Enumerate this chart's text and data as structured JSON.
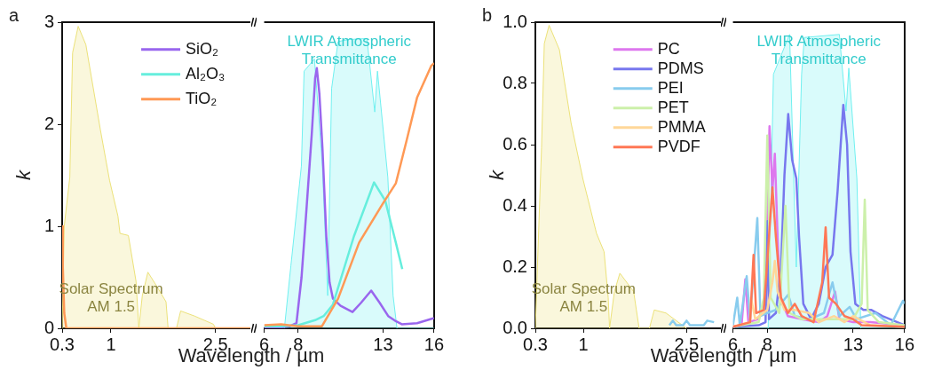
{
  "chart_data": [
    {
      "type": "line",
      "title": "a",
      "ylabel": "k",
      "xlabel": "Wavelength / µm",
      "xlim": [
        0.3,
        3
      ],
      "xticks": [
        0.3,
        1,
        2.5
      ],
      "ylim": [
        0,
        3
      ],
      "yticks": [
        0,
        1,
        2,
        3
      ],
      "legend": "top right",
      "marker": "none",
      "annotations": [
        "Solar Spectrum\nAM 1.5"
      ],
      "series": [
        {
          "type": "area",
          "color": "#ece27a",
          "x": [
            0.3,
            0.33,
            0.41,
            0.45,
            0.53,
            0.64,
            0.85,
            0.98,
            1.1,
            1.13,
            1.25,
            1.36,
            1.4,
            1.45,
            1.53,
            1.65,
            1.79,
            1.82,
            1.94,
            2.0,
            2.2,
            2.47,
            2.5
          ],
          "values": [
            0,
            1.0,
            1.48,
            2.7,
            2.96,
            2.78,
            1.94,
            1.45,
            1.1,
            0.93,
            0.91,
            0.46,
            0,
            0.32,
            0.55,
            0.42,
            0.26,
            0,
            0,
            0.17,
            0.12,
            0.04,
            0
          ]
        },
        {
          "name": "SiO₂",
          "color": "#9966ee"
        },
        {
          "name": "Al₂O₃",
          "color": "#66eedd"
        },
        {
          "name": "TiO₂",
          "color": "#ff9955",
          "x": [
            0.3,
            0.31,
            0.33,
            0.36,
            3
          ],
          "values": [
            1.0,
            0.6,
            0.15,
            0,
            0
          ]
        }
      ]
    },
    {
      "type": "line",
      "xlim": [
        6,
        16
      ],
      "xticks": [
        6,
        8,
        13,
        16
      ],
      "ylim": [
        0,
        3
      ],
      "yticks": [
        0,
        1,
        2,
        3
      ],
      "tick_labels": "x",
      "marker": "none",
      "annotations": [
        "LWIR Atmospheric\nTransmittance"
      ],
      "series": [
        {
          "type": "area",
          "color": "#70f0f0",
          "x": [
            6,
            7.19,
            7.57,
            8.19,
            8.35,
            8.96,
            9.43,
            9.74,
            9.97,
            10.35,
            10.97,
            12.05,
            12.51,
            12.67,
            13.28,
            13.59,
            13.82,
            16
          ],
          "values": [
            0,
            0,
            0.61,
            1.59,
            2.52,
            2.64,
            1.59,
            0.32,
            2.35,
            2.81,
            2.83,
            2.84,
            2.12,
            2.52,
            1.48,
            0.32,
            0,
            0
          ]
        },
        {
          "color": "#9966ee",
          "x": [
            6,
            7,
            7.5,
            7.9,
            8.2,
            8.5,
            8.8,
            9.0,
            9.1,
            9.25,
            9.43,
            9.66,
            9.85,
            10.05,
            10.5,
            11.2,
            11.7,
            12.3,
            12.8,
            13.3,
            13.75,
            14.1,
            15,
            16
          ],
          "values": [
            0.01,
            0.01,
            0.02,
            0.05,
            0.5,
            1.19,
            1.9,
            2.45,
            2.55,
            2.3,
            1.77,
            0.9,
            0.45,
            0.29,
            0.22,
            0.16,
            0.25,
            0.37,
            0.25,
            0.12,
            0.07,
            0.04,
            0.05,
            0.1
          ]
        },
        {
          "color": "#66eedd",
          "x": [
            6,
            7,
            8,
            9,
            9.5,
            10.04,
            11.28,
            12.47,
            13.13,
            13.75,
            14.13
          ],
          "values": [
            0.02,
            0.02,
            0.03,
            0.08,
            0.12,
            0.23,
            0.9,
            1.43,
            1.25,
            0.84,
            0.58
          ]
        },
        {
          "color": "#ff9955",
          "x": [
            6,
            7,
            8,
            9,
            9.4,
            10.35,
            11.59,
            12.98,
            13.75,
            14.37,
            15,
            15.83,
            16
          ],
          "values": [
            0.03,
            0.04,
            0.02,
            0.02,
            0.02,
            0.29,
            0.84,
            1.22,
            1.42,
            1.83,
            2.26,
            2.57,
            2.6
          ]
        }
      ]
    },
    {
      "type": "line",
      "title": "b",
      "ylabel": "k",
      "xlabel": "Wavelength / µm",
      "xlim": [
        0.3,
        3
      ],
      "xticks": [
        0.3,
        1,
        2.5
      ],
      "ylim": [
        0,
        1
      ],
      "yticks": [
        {
          "value": 0,
          "label": "0.0"
        },
        {
          "value": 0.2,
          "label": "0.2"
        },
        {
          "value": 0.4,
          "label": "0.4"
        },
        {
          "value": 0.6,
          "label": "0.6"
        },
        {
          "value": 0.8,
          "label": "0.8"
        },
        {
          "value": 1,
          "label": "1.0"
        }
      ],
      "legend": "top right",
      "marker": "none",
      "annotations": [
        "Solar Spectrum\nAM 1.5"
      ],
      "series": [
        {
          "type": "area",
          "color": "#ece27a",
          "x": [
            0.3,
            0.33,
            0.39,
            0.43,
            0.5,
            0.65,
            0.82,
            0.99,
            1.19,
            1.3,
            1.36,
            1.38,
            1.45,
            1.53,
            1.73,
            1.81,
            1.96,
            2.03,
            2.2,
            2.44,
            2.5
          ],
          "values": [
            0,
            0.2,
            0.59,
            0.93,
            0.99,
            0.91,
            0.67,
            0.49,
            0.31,
            0.25,
            0.1,
            0,
            0.12,
            0.18,
            0.12,
            0,
            0,
            0.06,
            0.05,
            0.01,
            0
          ]
        },
        {
          "name": "PC",
          "color": "#dd77ee"
        },
        {
          "name": "PDMS",
          "color": "#7777ee"
        },
        {
          "name": "PEI",
          "color": "#88ccee",
          "x": [
            2.25,
            2.3,
            2.35,
            2.45,
            2.5,
            2.55,
            2.75,
            2.8,
            2.9
          ],
          "values": [
            0.01,
            0.025,
            0.01,
            0.01,
            0.025,
            0.01,
            0.01,
            0.025,
            0.02
          ]
        },
        {
          "name": "PET",
          "color": "#ccf0aa"
        },
        {
          "name": "PMMA",
          "color": "#ffd799"
        },
        {
          "name": "PVDF",
          "color": "#ff7755"
        }
      ]
    },
    {
      "type": "line",
      "xlim": [
        6,
        16
      ],
      "xticks": [
        6,
        8,
        13,
        16
      ],
      "ylim": [
        0,
        1
      ],
      "yticks": [
        0,
        0.2,
        0.4,
        0.6,
        0.8,
        1
      ],
      "tick_labels": "x",
      "marker": "none",
      "annotations": [
        "LWIR Atmospheric\nTransmittance"
      ],
      "series": [
        {
          "type": "area",
          "color": "#70f0f0",
          "x": [
            6,
            8.05,
            8.36,
            9.3,
            9.69,
            10.0,
            10.16,
            12.2,
            12.59,
            12.75,
            13.22,
            13.45,
            16
          ],
          "values": [
            0,
            0,
            0.83,
            0.96,
            0.2,
            0.83,
            0.95,
            0.96,
            0.71,
            0.85,
            0.49,
            0,
            0
          ]
        },
        {
          "color": "#dd77ee",
          "x": [
            6,
            6.5,
            6.72,
            6.9,
            7.5,
            7.9,
            8.13,
            8.3,
            8.44,
            8.6,
            8.75,
            9.2,
            10,
            11,
            11.5,
            11.95,
            12.2,
            13,
            14,
            16
          ],
          "values": [
            0.005,
            0.01,
            0.16,
            0.02,
            0.03,
            0.1,
            0.66,
            0.45,
            0.57,
            0.3,
            0.1,
            0.04,
            0.03,
            0.02,
            0.04,
            0.12,
            0.03,
            0.02,
            0.02,
            0.01
          ]
        },
        {
          "color": "#7777ee",
          "x": [
            6,
            7.5,
            7.9,
            8.0,
            8.1,
            8.5,
            8.8,
            9.0,
            9.22,
            9.45,
            9.69,
            9.85,
            10.1,
            10.55,
            11.0,
            11.4,
            11.8,
            12.1,
            12.43,
            12.65,
            12.85,
            13.13,
            13.6,
            14.07,
            14.7,
            15.8,
            16
          ],
          "values": [
            0.005,
            0.01,
            0.02,
            0.35,
            0.03,
            0.05,
            0.2,
            0.5,
            0.7,
            0.55,
            0.49,
            0.3,
            0.08,
            0.03,
            0.08,
            0.2,
            0.24,
            0.45,
            0.73,
            0.6,
            0.25,
            0.08,
            0.06,
            0.06,
            0.04,
            0.015,
            0.01
          ]
        },
        {
          "color": "#88ccee",
          "x": [
            6,
            6.25,
            6.4,
            6.8,
            7.0,
            7.42,
            7.6,
            8.0,
            8.5,
            9.22,
            9.6,
            10.5,
            11.3,
            11.8,
            12.2,
            12.8,
            13.2,
            14.3,
            15.2,
            15.9,
            16
          ],
          "values": [
            0.01,
            0.1,
            0.01,
            0.17,
            0.03,
            0.36,
            0.04,
            0.05,
            0.06,
            0.11,
            0.04,
            0.03,
            0.05,
            0.15,
            0.04,
            0.07,
            0.03,
            0.05,
            0.01,
            0.09,
            0.08
          ]
        },
        {
          "color": "#ccf0aa",
          "x": [
            6,
            7.5,
            7.8,
            8.0,
            8.2,
            8.7,
            9.06,
            9.3,
            10,
            11,
            12,
            13,
            13.5,
            13.68,
            13.85,
            14.5,
            16
          ],
          "values": [
            0.005,
            0.02,
            0.1,
            0.63,
            0.1,
            0.05,
            0.4,
            0.05,
            0.03,
            0.03,
            0.03,
            0.03,
            0.08,
            0.42,
            0.06,
            0.02,
            0.01
          ]
        },
        {
          "color": "#ffd799",
          "x": [
            6,
            7,
            7.05,
            7.3,
            8.0,
            8.3,
            8.44,
            8.6,
            9.0,
            9.6,
            10.44,
            11,
            11.9,
            12.5,
            13,
            14,
            16
          ],
          "values": [
            0.005,
            0.02,
            0.1,
            0.03,
            0.06,
            0.15,
            0.22,
            0.12,
            0.06,
            0.06,
            0.05,
            0.02,
            0.04,
            0.02,
            0.04,
            0.01,
            0.005
          ]
        },
        {
          "color": "#ff7755",
          "x": [
            6,
            7,
            7.2,
            7.35,
            7.8,
            8.1,
            8.3,
            8.5,
            8.8,
            9.2,
            9.6,
            10,
            10.7,
            11.2,
            11.4,
            11.6,
            12,
            12.5,
            13,
            13.5,
            16
          ],
          "values": [
            0.005,
            0.02,
            0.24,
            0.05,
            0.06,
            0.3,
            0.46,
            0.3,
            0.1,
            0.05,
            0.08,
            0.04,
            0.02,
            0.15,
            0.33,
            0.1,
            0.08,
            0.04,
            0.03,
            0.01,
            0.005
          ]
        }
      ]
    }
  ]
}
